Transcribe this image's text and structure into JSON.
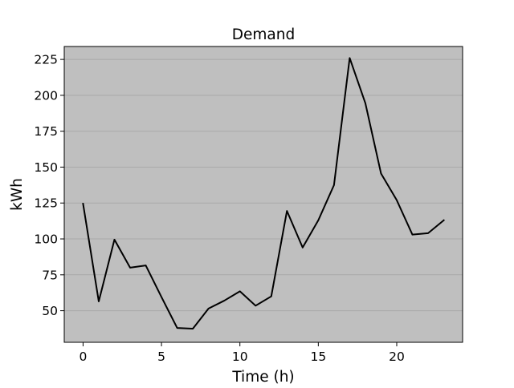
{
  "chart_data": {
    "type": "line",
    "title": "Demand",
    "xlabel": "Time (h)",
    "ylabel": "kWh",
    "x": [
      0,
      1,
      2,
      3,
      4,
      5,
      6,
      7,
      8,
      9,
      10,
      11,
      12,
      13,
      14,
      15,
      16,
      17,
      18,
      19,
      20,
      21,
      22,
      23
    ],
    "series": [
      {
        "name": "Demand",
        "values": [
          124.5,
          56.5,
          99.5,
          80,
          81.5,
          59.5,
          38,
          37.5,
          51.5,
          57,
          63.5,
          53.5,
          60,
          119.5,
          94,
          113,
          137.5,
          226,
          194.5,
          145.5,
          127,
          103,
          104,
          113
        ],
        "color": "#000000"
      }
    ],
    "xticks": [
      "0",
      "5",
      "10",
      "15",
      "20"
    ],
    "yticks": [
      "50",
      "75",
      "100",
      "125",
      "150",
      "175",
      "200",
      "225"
    ],
    "xlim": [
      -1.2,
      24.2
    ],
    "ylim": [
      28,
      234
    ],
    "grid": "y",
    "background_color": "#bfbfbf",
    "grid_color": "#a9a9a9"
  }
}
